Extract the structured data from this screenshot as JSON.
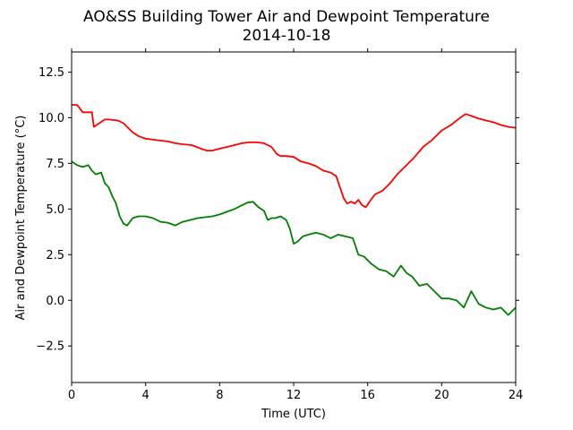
{
  "chart_data": {
    "type": "line",
    "title": "AO&SS Building Tower Air and Dewpoint Temperature",
    "subtitle": "2014-10-18",
    "xlabel": "Time (UTC)",
    "ylabel": "Air and Dewpoint Temperature (°C)",
    "xlim": [
      0,
      24
    ],
    "ylim": [
      -4.5,
      13.6
    ],
    "xticks": [
      0,
      4,
      8,
      12,
      16,
      20,
      24
    ],
    "yticks": [
      -2.5,
      0.0,
      2.5,
      5.0,
      7.5,
      10.0,
      12.5
    ],
    "ytick_labels": [
      "−2.5",
      "0.0",
      "2.5",
      "5.0",
      "7.5",
      "10.0",
      "12.5"
    ],
    "grid": false,
    "series": [
      {
        "color": "#ff0000",
        "x": [
          0.0,
          0.3,
          0.45,
          0.6,
          0.9,
          1.1,
          1.2,
          1.35,
          1.5,
          1.8,
          2.0,
          2.5,
          2.8,
          3.0,
          3.3,
          3.6,
          4.0,
          4.4,
          4.8,
          5.2,
          5.6,
          6.0,
          6.5,
          7.0,
          7.3,
          7.6,
          8.0,
          8.4,
          8.8,
          9.2,
          9.6,
          10.0,
          10.4,
          10.8,
          11.1,
          11.3,
          11.6,
          12.0,
          12.4,
          12.8,
          13.2,
          13.6,
          14.0,
          14.3,
          14.5,
          14.7,
          14.9,
          15.1,
          15.3,
          15.5,
          15.7,
          15.9,
          16.1,
          16.4,
          16.8,
          17.2,
          17.6,
          18.0,
          18.5,
          19.0,
          19.5,
          20.0,
          20.5,
          21.0,
          21.3,
          21.6,
          22.0,
          22.4,
          22.8,
          23.2,
          23.6,
          24.0
        ],
        "y": [
          10.7,
          10.7,
          10.5,
          10.3,
          10.3,
          10.3,
          9.5,
          9.6,
          9.7,
          9.9,
          9.9,
          9.85,
          9.7,
          9.5,
          9.2,
          9.0,
          8.85,
          8.8,
          8.75,
          8.7,
          8.6,
          8.55,
          8.5,
          8.3,
          8.2,
          8.2,
          8.3,
          8.4,
          8.5,
          8.6,
          8.65,
          8.65,
          8.6,
          8.4,
          8.0,
          7.9,
          7.9,
          7.85,
          7.6,
          7.5,
          7.35,
          7.1,
          7.0,
          6.8,
          6.2,
          5.6,
          5.3,
          5.4,
          5.3,
          5.5,
          5.2,
          5.1,
          5.4,
          5.8,
          6.0,
          6.4,
          6.9,
          7.3,
          7.8,
          8.4,
          8.8,
          9.3,
          9.6,
          10.0,
          10.2,
          10.1,
          9.95,
          9.85,
          9.75,
          9.6,
          9.5,
          9.45
        ]
      },
      {
        "color": "#008000",
        "x": [
          0.0,
          0.3,
          0.6,
          0.9,
          1.1,
          1.3,
          1.6,
          1.8,
          2.0,
          2.2,
          2.4,
          2.6,
          2.8,
          3.0,
          3.3,
          3.6,
          4.0,
          4.4,
          4.8,
          5.2,
          5.6,
          6.0,
          6.4,
          6.8,
          7.2,
          7.6,
          8.0,
          8.4,
          8.8,
          9.2,
          9.5,
          9.8,
          10.1,
          10.4,
          10.6,
          10.8,
          11.0,
          11.3,
          11.6,
          11.8,
          12.0,
          12.2,
          12.5,
          12.8,
          13.2,
          13.6,
          14.0,
          14.4,
          14.8,
          15.2,
          15.5,
          15.8,
          16.2,
          16.6,
          17.0,
          17.4,
          17.8,
          18.1,
          18.4,
          18.8,
          19.2,
          19.6,
          20.0,
          20.4,
          20.8,
          21.2,
          21.6,
          22.0,
          22.4,
          22.8,
          23.2,
          23.6,
          24.0
        ],
        "y": [
          7.6,
          7.4,
          7.3,
          7.4,
          7.1,
          6.9,
          7.0,
          6.4,
          6.2,
          5.7,
          5.3,
          4.6,
          4.2,
          4.1,
          4.5,
          4.6,
          4.6,
          4.5,
          4.3,
          4.25,
          4.1,
          4.3,
          4.4,
          4.5,
          4.55,
          4.6,
          4.7,
          4.85,
          5.0,
          5.2,
          5.35,
          5.4,
          5.1,
          4.9,
          4.4,
          4.5,
          4.5,
          4.6,
          4.4,
          3.9,
          3.1,
          3.2,
          3.5,
          3.6,
          3.7,
          3.6,
          3.4,
          3.6,
          3.5,
          3.4,
          2.5,
          2.4,
          2.0,
          1.7,
          1.6,
          1.3,
          1.9,
          1.5,
          1.3,
          0.8,
          0.9,
          0.5,
          0.1,
          0.1,
          0.0,
          -0.4,
          0.5,
          -0.2,
          -0.4,
          -0.5,
          -0.4,
          -0.8,
          -0.4
        ]
      }
    ]
  }
}
